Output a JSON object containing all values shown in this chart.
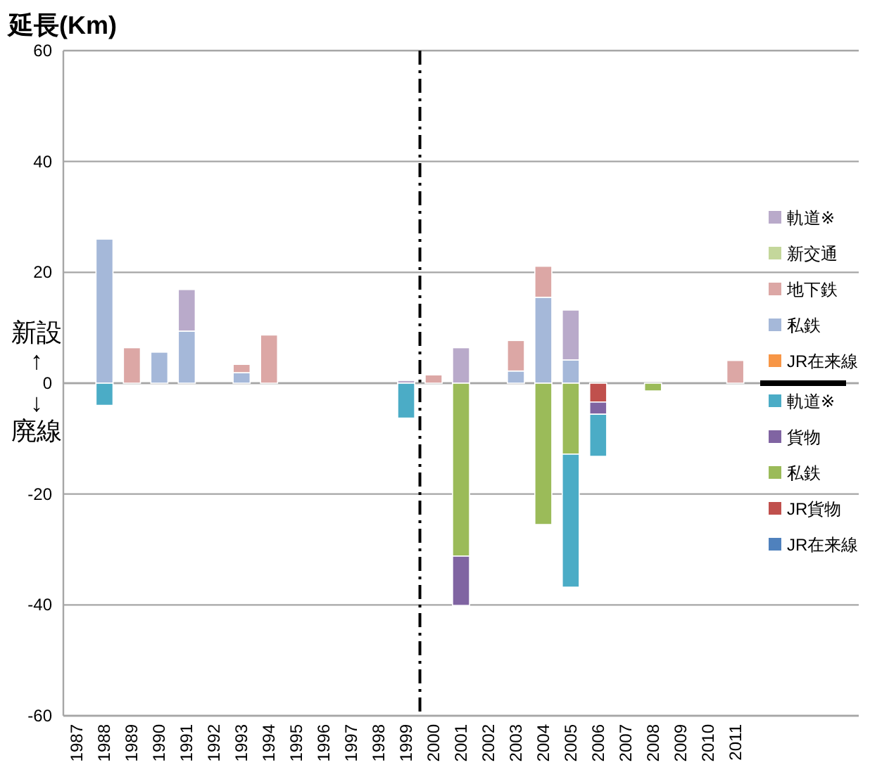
{
  "chart_data": {
    "type": "bar",
    "stacked": true,
    "ylabel": "延長(Km)",
    "annotations": [
      "新設\n↑",
      "↓\n廃線"
    ],
    "x": [
      1988,
      1989,
      1990,
      1991,
      1992,
      1993,
      1994,
      1995,
      1996,
      1997,
      1998,
      1999,
      2000,
      2001,
      2002,
      2003,
      2004,
      2005,
      2006,
      2007,
      2008,
      2009,
      2010,
      2011
    ],
    "xlim": [
      1986.5,
      2015.5
    ],
    "xticks": [
      1987,
      1988,
      1989,
      1990,
      1991,
      1992,
      1993,
      1994,
      1995,
      1996,
      1997,
      1998,
      1999,
      2000,
      2001,
      2002,
      2003,
      2004,
      2005,
      2006,
      2007,
      2008,
      2009,
      2010,
      2011
    ],
    "ylim": [
      -60,
      60
    ],
    "yticks": [
      -60,
      -40,
      -20,
      0,
      20,
      40,
      60
    ],
    "grid": "y",
    "legend": "right",
    "ref_lines": [
      {
        "axis": "x",
        "value": 1999.5,
        "color": "#000000",
        "line_style": "dashdot"
      }
    ],
    "series": [
      {
        "name": "JR在来線",
        "color": "#f79646",
        "values": [
          null,
          null,
          null,
          null,
          null,
          null,
          null,
          null,
          null,
          null,
          null,
          null,
          null,
          null,
          null,
          null,
          null,
          null,
          null,
          null,
          null,
          null,
          null,
          null
        ]
      },
      {
        "name": "私鉄",
        "color": "#a5b8d9",
        "values": [
          26,
          null,
          5.6,
          9.4,
          null,
          1.9,
          null,
          null,
          null,
          null,
          null,
          null,
          null,
          null,
          null,
          2.2,
          15.5,
          4.2,
          null,
          null,
          null,
          null,
          null,
          null
        ]
      },
      {
        "name": "地下鉄",
        "color": "#dca7a5",
        "values": [
          null,
          6.4,
          null,
          null,
          null,
          1.5,
          8.7,
          null,
          null,
          null,
          null,
          null,
          1.5,
          null,
          null,
          5.5,
          5.6,
          null,
          null,
          null,
          null,
          null,
          null,
          4.1
        ]
      },
      {
        "name": "新交通",
        "color": "#c4d79b",
        "values": [
          null,
          null,
          null,
          null,
          null,
          null,
          null,
          null,
          null,
          null,
          null,
          null,
          null,
          null,
          null,
          null,
          null,
          null,
          null,
          null,
          null,
          null,
          null,
          null
        ]
      },
      {
        "name": "軌道※",
        "color": "#b9aaca",
        "values": [
          null,
          null,
          null,
          7.5,
          null,
          null,
          null,
          null,
          null,
          null,
          null,
          0.5,
          null,
          6.4,
          null,
          null,
          null,
          9,
          null,
          null,
          null,
          null,
          null,
          null
        ]
      },
      {
        "name": "JR在来線",
        "color": "#4f81bd",
        "values": [
          null,
          null,
          null,
          null,
          null,
          null,
          null,
          null,
          null,
          null,
          null,
          null,
          null,
          null,
          null,
          null,
          null,
          null,
          null,
          null,
          null,
          null,
          null,
          null
        ]
      },
      {
        "name": "JR貨物",
        "color": "#c0504d",
        "values": [
          null,
          null,
          null,
          null,
          null,
          null,
          null,
          null,
          null,
          null,
          null,
          null,
          null,
          null,
          null,
          null,
          null,
          null,
          -3.4,
          null,
          null,
          null,
          null,
          null
        ]
      },
      {
        "name": "私鉄",
        "color": "#9bbb59",
        "values": [
          null,
          null,
          null,
          null,
          null,
          null,
          null,
          null,
          null,
          null,
          null,
          null,
          null,
          -31.2,
          null,
          null,
          -25.5,
          -12.8,
          null,
          null,
          -1.4,
          null,
          null,
          null
        ]
      },
      {
        "name": "貨物",
        "color": "#8064a2",
        "values": [
          null,
          null,
          null,
          null,
          null,
          null,
          null,
          null,
          null,
          null,
          null,
          null,
          null,
          -8.9,
          null,
          null,
          null,
          null,
          -2.2,
          null,
          null,
          null,
          null,
          null
        ]
      },
      {
        "name": "軌道※",
        "color": "#4bacc6",
        "values": [
          -4,
          null,
          null,
          null,
          null,
          null,
          null,
          null,
          null,
          null,
          null,
          -6.3,
          null,
          null,
          null,
          null,
          null,
          -24,
          -7.6,
          null,
          null,
          null,
          null,
          null
        ]
      }
    ]
  }
}
